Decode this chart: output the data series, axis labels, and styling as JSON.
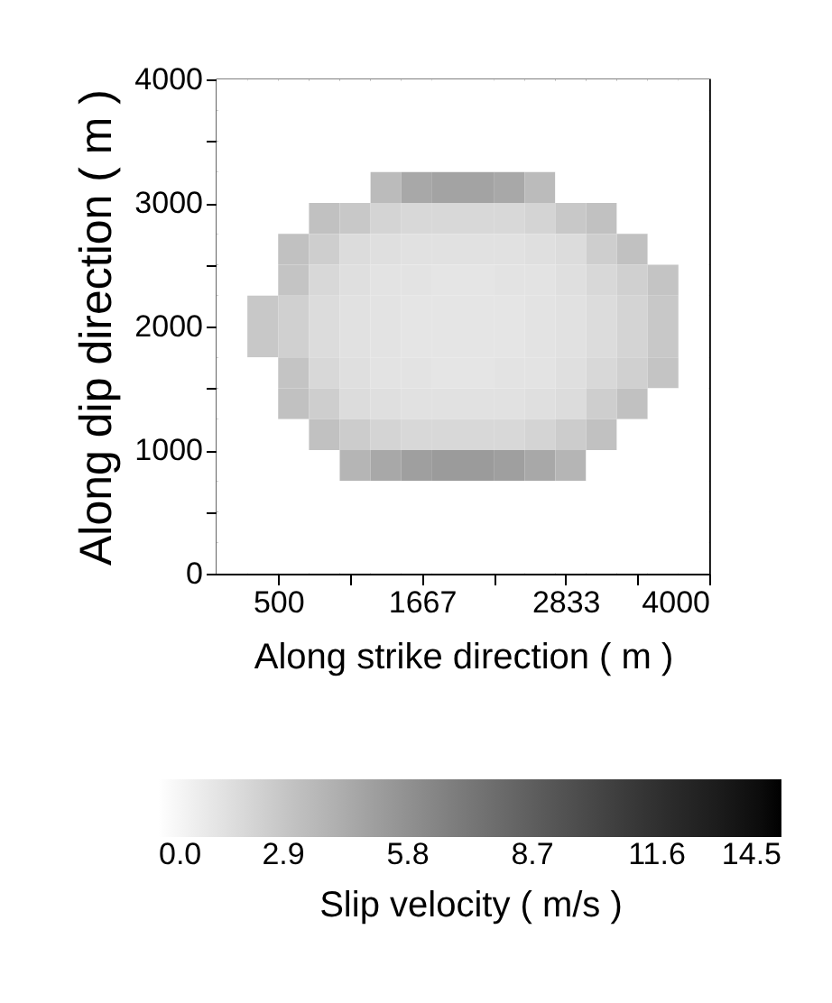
{
  "chart_data": {
    "type": "heatmap",
    "xlabel": "Along strike direction ( m )",
    "ylabel": "Along dip direction ( m )",
    "clabel": "Slip velocity ( m/s )",
    "xlim": [
      0,
      4000
    ],
    "xticks": [
      500,
      {
        "value": 1083,
        "label": null
      },
      1667,
      {
        "value": 2250,
        "label": null
      },
      2833,
      {
        "value": 3417,
        "label": null
      },
      4000
    ],
    "ylim": [
      0,
      4000
    ],
    "yticks": [
      0,
      {
        "value": 500,
        "label": null
      },
      1000,
      {
        "value": 1500,
        "label": null
      },
      2000,
      {
        "value": 2500,
        "label": null
      },
      3000,
      {
        "value": 3500,
        "label": null
      },
      4000
    ],
    "clim": [
      0,
      14.5
    ],
    "cticks": [
      {
        "value": 0,
        "label": "0.0"
      },
      2.9,
      5.8,
      8.7,
      11.6,
      14.5
    ],
    "colors": [
      "#ffffff",
      "#000000"
    ],
    "x": [
      125,
      375,
      625,
      875,
      1125,
      1375,
      1625,
      1875,
      2125,
      2375,
      2625,
      2875,
      3125,
      3375,
      3625,
      3875
    ],
    "y": [
      3875,
      3625,
      3375,
      3125,
      2875,
      2625,
      2375,
      2125,
      1875,
      1625,
      1375,
      1125,
      875,
      625,
      375,
      125
    ],
    "cells": [
      [
        0,
        0,
        0,
        0,
        0,
        0,
        0,
        0,
        0,
        0,
        0,
        0,
        0,
        0,
        0,
        0
      ],
      [
        0,
        0,
        0,
        0,
        0,
        0,
        0,
        0,
        0,
        0,
        0,
        0,
        0,
        0,
        0,
        0
      ],
      [
        0,
        0,
        0,
        0,
        0,
        0,
        0,
        0,
        0,
        0,
        0,
        0,
        0,
        0,
        0,
        0
      ],
      [
        0,
        0,
        0,
        0,
        0,
        3.5,
        4.5,
        4.8,
        4.8,
        4.5,
        3.5,
        0,
        0,
        0,
        0,
        0
      ],
      [
        0,
        0,
        0,
        3.2,
        2.8,
        2.2,
        2.0,
        2.0,
        2.0,
        2.0,
        2.2,
        2.8,
        3.2,
        0,
        0,
        0
      ],
      [
        0,
        0,
        3.2,
        2.5,
        1.8,
        1.6,
        1.5,
        1.5,
        1.5,
        1.5,
        1.6,
        1.8,
        2.5,
        3.2,
        0,
        0
      ],
      [
        0,
        0,
        3.0,
        2.0,
        1.6,
        1.4,
        1.4,
        1.3,
        1.3,
        1.4,
        1.4,
        1.6,
        2.0,
        2.4,
        3.0,
        0
      ],
      [
        0,
        2.8,
        2.4,
        1.8,
        1.5,
        1.4,
        1.3,
        1.3,
        1.3,
        1.3,
        1.4,
        1.5,
        1.8,
        2.2,
        2.8,
        0
      ],
      [
        0,
        2.8,
        2.4,
        1.8,
        1.5,
        1.4,
        1.3,
        1.3,
        1.3,
        1.3,
        1.4,
        1.5,
        1.8,
        2.2,
        2.8,
        0
      ],
      [
        0,
        0,
        3.0,
        2.0,
        1.6,
        1.4,
        1.4,
        1.3,
        1.3,
        1.4,
        1.4,
        1.6,
        2.0,
        2.4,
        3.0,
        0
      ],
      [
        0,
        0,
        3.2,
        2.5,
        1.8,
        1.6,
        1.5,
        1.5,
        1.5,
        1.5,
        1.6,
        1.8,
        2.5,
        3.2,
        0,
        0
      ],
      [
        0,
        0,
        0,
        3.2,
        2.6,
        2.2,
        2.0,
        2.0,
        2.0,
        2.0,
        2.2,
        2.6,
        3.2,
        0,
        0,
        0
      ],
      [
        0,
        0,
        0,
        0,
        3.8,
        4.5,
        5.0,
        5.2,
        5.2,
        5.0,
        4.5,
        3.8,
        0,
        0,
        0,
        0
      ],
      [
        0,
        0,
        0,
        0,
        0,
        0,
        0,
        0,
        0,
        0,
        0,
        0,
        0,
        0,
        0,
        0
      ],
      [
        0,
        0,
        0,
        0,
        0,
        0,
        0,
        0,
        0,
        0,
        0,
        0,
        0,
        0,
        0,
        0
      ],
      [
        0,
        0,
        0,
        0,
        0,
        0,
        0,
        0,
        0,
        0,
        0,
        0,
        0,
        0,
        0,
        0
      ]
    ]
  }
}
